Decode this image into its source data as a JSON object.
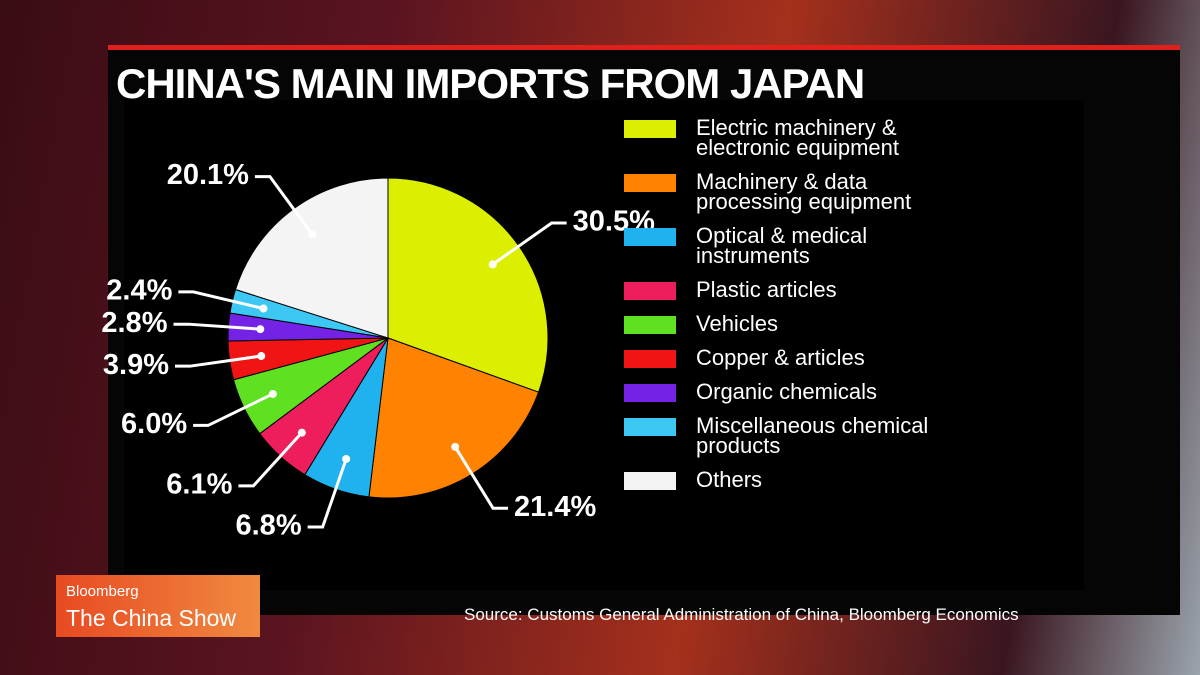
{
  "chart_data": {
    "type": "pie",
    "title": "CHINA'S MAIN IMPORTS FROM JAPAN",
    "categories": [
      "Electric machinery & electronic equipment",
      "Machinery & data processing equipment",
      "Optical & medical instruments",
      "Plastic articles",
      "Vehicles",
      "Copper & articles",
      "Organic chemicals",
      "Miscellaneous chemical products",
      "Others"
    ],
    "values": [
      30.5,
      21.4,
      6.8,
      6.1,
      6.0,
      3.9,
      2.8,
      2.4,
      20.1
    ],
    "value_labels": [
      "30.5%",
      "21.4%",
      "6.8%",
      "6.1%",
      "6.0%",
      "3.9%",
      "2.8%",
      "2.4%",
      "20.1%"
    ],
    "colors": [
      "#dcef00",
      "#ff8200",
      "#1fb2ee",
      "#ee1e5c",
      "#5fe020",
      "#f01414",
      "#7422e6",
      "#3cc8f2",
      "#f4f4f4"
    ],
    "source": "Source: Customs General Administration of China, Bloomberg Economics"
  },
  "overlay": {
    "brand": "Bloomberg",
    "show": "The China Show"
  }
}
